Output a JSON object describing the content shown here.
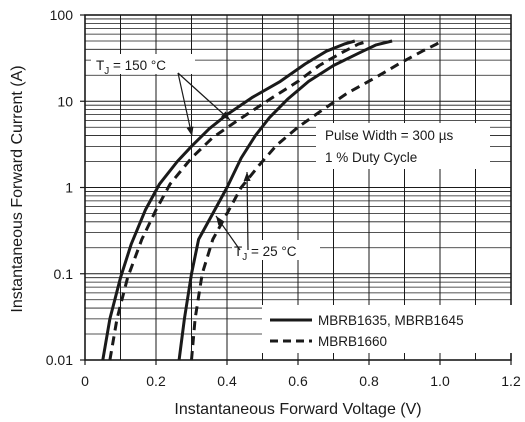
{
  "chart_data": {
    "type": "line",
    "xlabel": "Instantaneous Forward Voltage (V)",
    "ylabel": "Instantaneous Forward Current (A)",
    "xlim": [
      0,
      1.2
    ],
    "ylim": [
      0.01,
      100
    ],
    "y_scale": "log",
    "grid": true,
    "x_ticks": [
      "0",
      "0.2",
      "0.4",
      "0.6",
      "0.8",
      "1.0",
      "1.2"
    ],
    "y_ticks": [
      "0.01",
      "0.1",
      "1",
      "10",
      "100"
    ],
    "legend_position": "bottom-right",
    "series": [
      {
        "name": "MBRB1635, MBRB1645",
        "style": "solid",
        "curves": [
          {
            "temp": "150",
            "points": [
              [
                0.05,
                0.01
              ],
              [
                0.07,
                0.03
              ],
              [
                0.1,
                0.09
              ],
              [
                0.13,
                0.22
              ],
              [
                0.17,
                0.55
              ],
              [
                0.21,
                1.1
              ],
              [
                0.26,
                2.0
              ],
              [
                0.3,
                3.0
              ],
              [
                0.35,
                4.8
              ],
              [
                0.4,
                7.0
              ],
              [
                0.47,
                11.0
              ],
              [
                0.55,
                17.0
              ],
              [
                0.62,
                27.0
              ],
              [
                0.68,
                38.0
              ],
              [
                0.73,
                46.0
              ],
              [
                0.76,
                50.0
              ]
            ]
          },
          {
            "temp": "25",
            "points": [
              [
                0.265,
                0.01
              ],
              [
                0.28,
                0.03
              ],
              [
                0.3,
                0.1
              ],
              [
                0.32,
                0.25
              ],
              [
                0.36,
                0.5
              ],
              [
                0.4,
                1.0
              ],
              [
                0.44,
                2.2
              ],
              [
                0.48,
                4.0
              ],
              [
                0.52,
                6.5
              ],
              [
                0.57,
                10.5
              ],
              [
                0.63,
                17.0
              ],
              [
                0.7,
                26.0
              ],
              [
                0.77,
                36.0
              ],
              [
                0.82,
                45.0
              ],
              [
                0.865,
                50.0
              ]
            ]
          }
        ]
      },
      {
        "name": "MBRB1660",
        "style": "dashed",
        "curves": [
          {
            "temp": "150",
            "points": [
              [
                0.07,
                0.01
              ],
              [
                0.09,
                0.03
              ],
              [
                0.12,
                0.09
              ],
              [
                0.16,
                0.25
              ],
              [
                0.2,
                0.55
              ],
              [
                0.24,
                1.1
              ],
              [
                0.3,
                2.2
              ],
              [
                0.36,
                3.8
              ],
              [
                0.43,
                6.0
              ],
              [
                0.52,
                10.5
              ],
              [
                0.6,
                17.0
              ],
              [
                0.66,
                26.0
              ],
              [
                0.72,
                36.0
              ],
              [
                0.77,
                46.0
              ],
              [
                0.8,
                50.0
              ]
            ]
          },
          {
            "temp": "25",
            "points": [
              [
                0.3,
                0.01
              ],
              [
                0.31,
                0.03
              ],
              [
                0.33,
                0.1
              ],
              [
                0.36,
                0.25
              ],
              [
                0.4,
                0.5
              ],
              [
                0.44,
                1.0
              ],
              [
                0.49,
                1.8
              ],
              [
                0.54,
                3.1
              ],
              [
                0.6,
                5.0
              ],
              [
                0.67,
                8.0
              ],
              [
                0.74,
                12.5
              ],
              [
                0.82,
                19.0
              ],
              [
                0.89,
                28.0
              ],
              [
                0.95,
                38.0
              ],
              [
                0.99,
                46.0
              ],
              [
                1.005,
                50.0
              ]
            ]
          }
        ]
      }
    ],
    "annotations": {
      "tj150": {
        "prefix": "T",
        "sub": "J",
        "text": " = 150 °C"
      },
      "tj25": {
        "prefix": "T",
        "sub": "J",
        "text": " = 25 °C"
      },
      "pulse_width": "Pulse Width = 300 µs",
      "duty_cycle": "1 % Duty Cycle"
    }
  }
}
